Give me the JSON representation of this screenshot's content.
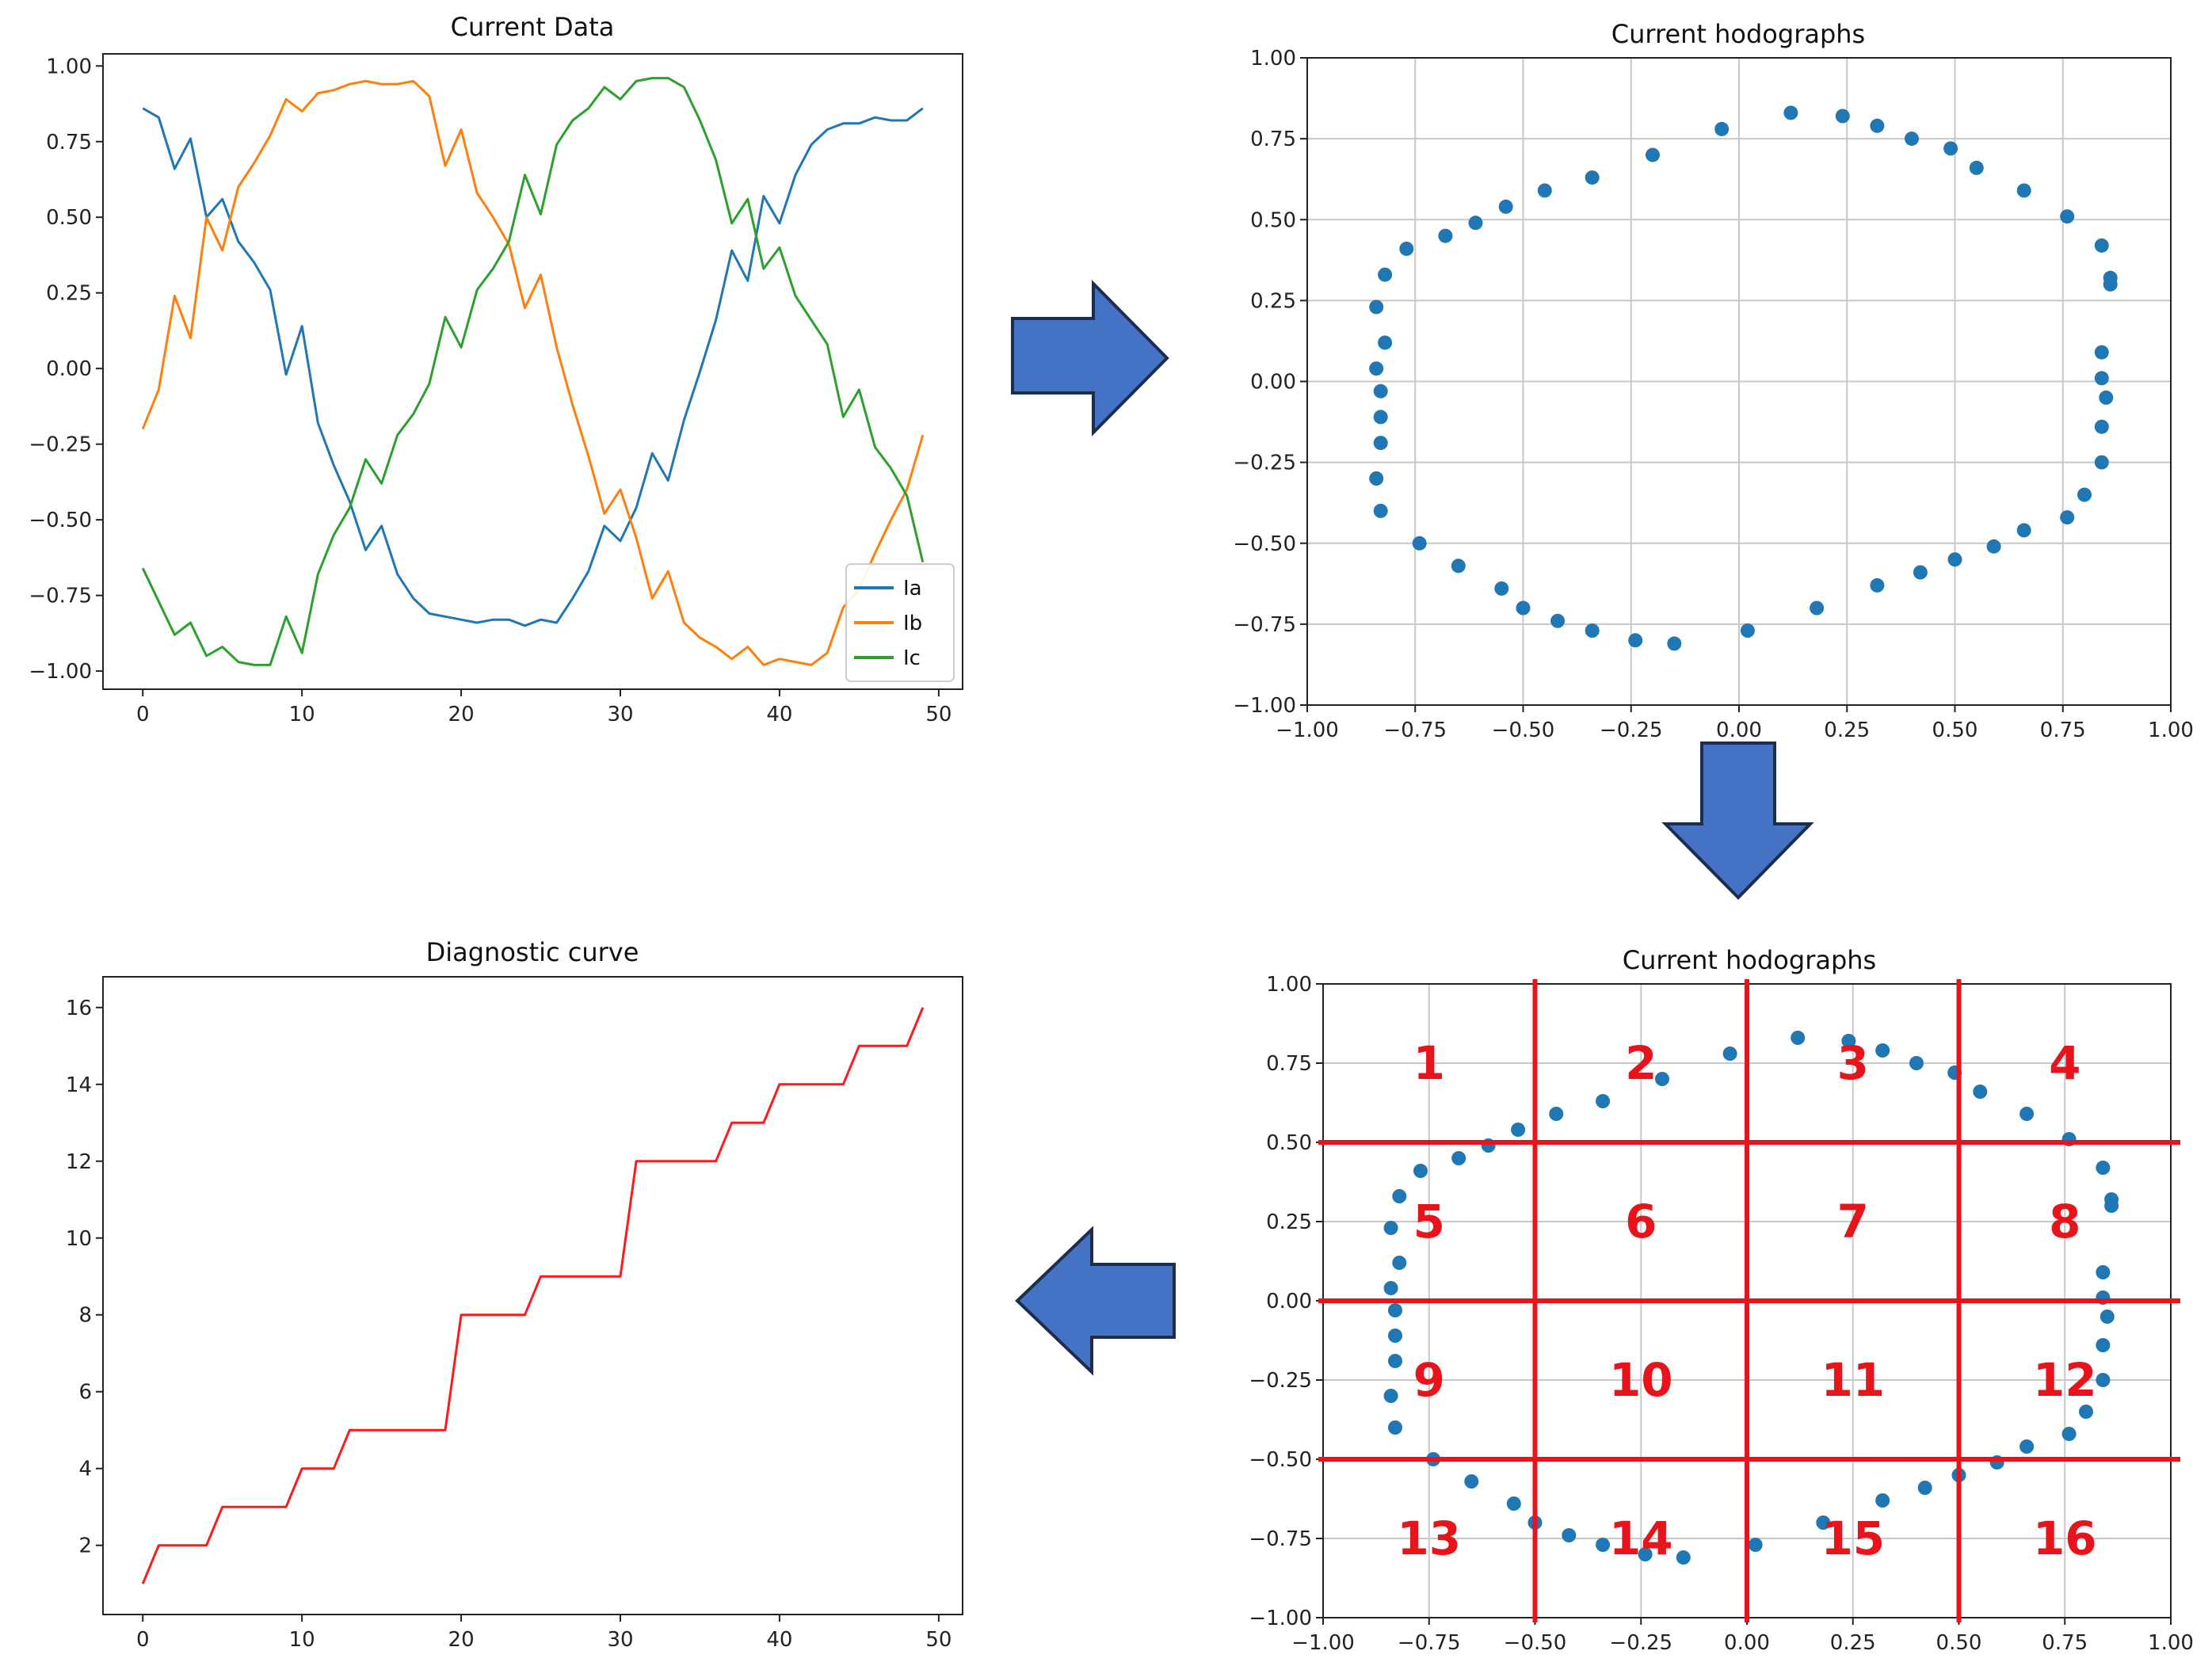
{
  "colors": {
    "ia": "#1f77b4",
    "ib": "#ff7f0e",
    "ic": "#2ca02c",
    "points": "#1f77b4",
    "diagnostic": "#ff1a1a",
    "grid_lines": "#e8141c",
    "arrow_fill": "#4472c4",
    "arrow_stroke": "#1f2d4d"
  },
  "chart_data": [
    {
      "id": "current-data",
      "type": "line",
      "title": "Current Data",
      "xlabel": "",
      "ylabel": "",
      "xlim": [
        -2.5,
        51.5
      ],
      "ylim": [
        -1.06,
        1.04
      ],
      "xticks": [
        0,
        10,
        20,
        30,
        40,
        50
      ],
      "xtick_labels": [
        "0",
        "10",
        "20",
        "30",
        "40",
        "50"
      ],
      "yticks": [
        1.0,
        0.75,
        0.5,
        0.25,
        0.0,
        -0.25,
        -0.5,
        -0.75,
        -1.0
      ],
      "ytick_labels": [
        "1.00",
        "0.75",
        "0.50",
        "0.25",
        "0.00",
        "−0.25",
        "−0.50",
        "−0.75",
        "−1.00"
      ],
      "grid": false,
      "legend_position": "lower-right",
      "x": [
        0,
        1,
        2,
        3,
        4,
        5,
        6,
        7,
        8,
        9,
        10,
        11,
        12,
        13,
        14,
        15,
        16,
        17,
        18,
        19,
        20,
        21,
        22,
        23,
        24,
        25,
        26,
        27,
        28,
        29,
        30,
        31,
        32,
        33,
        34,
        35,
        36,
        37,
        38,
        39,
        40,
        41,
        42,
        43,
        44,
        45,
        46,
        47,
        48,
        49
      ],
      "series": [
        {
          "name": "Ia",
          "color_key": "ia",
          "values": [
            0.86,
            0.83,
            0.66,
            0.76,
            0.5,
            0.56,
            0.42,
            0.35,
            0.26,
            -0.02,
            0.14,
            -0.18,
            -0.32,
            -0.44,
            -0.6,
            -0.52,
            -0.68,
            -0.76,
            -0.81,
            -0.82,
            -0.83,
            -0.84,
            -0.83,
            -0.83,
            -0.85,
            -0.83,
            -0.84,
            -0.76,
            -0.67,
            -0.52,
            -0.57,
            -0.46,
            -0.28,
            -0.37,
            -0.17,
            -0.01,
            0.16,
            0.39,
            0.29,
            0.57,
            0.48,
            0.64,
            0.74,
            0.79,
            0.81,
            0.81,
            0.83,
            0.82,
            0.82,
            0.86
          ]
        },
        {
          "name": "Ib",
          "color_key": "ib",
          "values": [
            -0.2,
            -0.07,
            0.24,
            0.1,
            0.5,
            0.39,
            0.6,
            0.68,
            0.77,
            0.89,
            0.85,
            0.91,
            0.92,
            0.94,
            0.95,
            0.94,
            0.94,
            0.95,
            0.9,
            0.67,
            0.79,
            0.58,
            0.5,
            0.41,
            0.2,
            0.31,
            0.07,
            -0.12,
            -0.29,
            -0.48,
            -0.4,
            -0.56,
            -0.76,
            -0.67,
            -0.84,
            -0.89,
            -0.92,
            -0.96,
            -0.92,
            -0.98,
            -0.96,
            -0.97,
            -0.98,
            -0.94,
            -0.79,
            -0.73,
            -0.61,
            -0.5,
            -0.4,
            -0.22
          ]
        },
        {
          "name": "Ic",
          "color_key": "ic",
          "values": [
            -0.66,
            -0.77,
            -0.88,
            -0.84,
            -0.95,
            -0.92,
            -0.97,
            -0.98,
            -0.98,
            -0.82,
            -0.94,
            -0.68,
            -0.55,
            -0.46,
            -0.3,
            -0.38,
            -0.22,
            -0.15,
            -0.05,
            0.17,
            0.07,
            0.26,
            0.33,
            0.42,
            0.64,
            0.51,
            0.74,
            0.82,
            0.86,
            0.93,
            0.89,
            0.95,
            0.96,
            0.96,
            0.93,
            0.82,
            0.69,
            0.48,
            0.56,
            0.33,
            0.4,
            0.24,
            0.16,
            0.08,
            -0.16,
            -0.07,
            -0.26,
            -0.33,
            -0.42,
            -0.64
          ]
        }
      ]
    },
    {
      "id": "current-hodographs",
      "type": "scatter",
      "title": "Current hodographs",
      "xlabel": "",
      "ylabel": "",
      "xlim": [
        -1.0,
        1.0
      ],
      "ylim": [
        -1.0,
        1.0
      ],
      "xticks": [
        -1.0,
        -0.75,
        -0.5,
        -0.25,
        0.0,
        0.25,
        0.5,
        0.75,
        1.0
      ],
      "xtick_labels": [
        "−1.00",
        "−0.75",
        "−0.50",
        "−0.25",
        "0.00",
        "0.25",
        "0.50",
        "0.75",
        "1.00"
      ],
      "yticks": [
        1.0,
        0.75,
        0.5,
        0.25,
        0.0,
        -0.25,
        -0.5,
        -0.75,
        -1.0
      ],
      "ytick_labels": [
        "1.00",
        "0.75",
        "0.50",
        "0.25",
        "0.00",
        "−0.25",
        "−0.50",
        "−0.75",
        "−1.00"
      ],
      "grid": true,
      "points": [
        [
          0.12,
          0.83
        ],
        [
          0.24,
          0.82
        ],
        [
          0.32,
          0.79
        ],
        [
          0.4,
          0.75
        ],
        [
          0.49,
          0.72
        ],
        [
          0.55,
          0.66
        ],
        [
          0.66,
          0.59
        ],
        [
          0.76,
          0.51
        ],
        [
          0.84,
          0.42
        ],
        [
          0.86,
          0.32
        ],
        [
          0.86,
          0.3
        ],
        [
          0.84,
          0.09
        ],
        [
          0.84,
          0.01
        ],
        [
          0.85,
          -0.05
        ],
        [
          0.84,
          -0.14
        ],
        [
          0.84,
          -0.25
        ],
        [
          0.8,
          -0.35
        ],
        [
          0.76,
          -0.42
        ],
        [
          0.66,
          -0.46
        ],
        [
          0.59,
          -0.51
        ],
        [
          0.5,
          -0.55
        ],
        [
          0.42,
          -0.59
        ],
        [
          0.32,
          -0.63
        ],
        [
          0.18,
          -0.7
        ],
        [
          0.02,
          -0.77
        ],
        [
          -0.15,
          -0.81
        ],
        [
          -0.24,
          -0.8
        ],
        [
          -0.34,
          -0.77
        ],
        [
          -0.42,
          -0.74
        ],
        [
          -0.5,
          -0.7
        ],
        [
          -0.55,
          -0.64
        ],
        [
          -0.65,
          -0.57
        ],
        [
          -0.74,
          -0.5
        ],
        [
          -0.83,
          -0.4
        ],
        [
          -0.84,
          -0.3
        ],
        [
          -0.83,
          -0.19
        ],
        [
          -0.83,
          -0.11
        ],
        [
          -0.83,
          -0.03
        ],
        [
          -0.84,
          0.04
        ],
        [
          -0.82,
          0.12
        ],
        [
          -0.84,
          0.23
        ],
        [
          -0.82,
          0.33
        ],
        [
          -0.77,
          0.41
        ],
        [
          -0.68,
          0.45
        ],
        [
          -0.61,
          0.49
        ],
        [
          -0.54,
          0.54
        ],
        [
          -0.45,
          0.59
        ],
        [
          -0.34,
          0.63
        ],
        [
          -0.2,
          0.7
        ],
        [
          -0.04,
          0.78
        ]
      ]
    },
    {
      "id": "current-hodographs-regions",
      "type": "scatter",
      "title": "Current hodographs",
      "xlabel": "",
      "ylabel": "",
      "xlim": [
        -1.0,
        1.0
      ],
      "ylim": [
        -1.0,
        1.0
      ],
      "xticks": [
        -1.0,
        -0.75,
        -0.5,
        -0.25,
        0.0,
        0.25,
        0.5,
        0.75,
        1.0
      ],
      "xtick_labels": [
        "−1.00",
        "−0.75",
        "−0.50",
        "−0.25",
        "0.00",
        "0.25",
        "0.50",
        "0.75",
        "1.00"
      ],
      "yticks": [
        1.0,
        0.75,
        0.5,
        0.25,
        0.0,
        -0.25,
        -0.5,
        -0.75,
        -1.0
      ],
      "ytick_labels": [
        "1.00",
        "0.75",
        "0.50",
        "0.25",
        "0.00",
        "−0.25",
        "−0.50",
        "−0.75",
        "−1.00"
      ],
      "grid": true,
      "divider_lines": [
        -0.5,
        0.0,
        0.5
      ],
      "regions": [
        {
          "label": "1",
          "x": -0.75,
          "y": 0.75
        },
        {
          "label": "2",
          "x": -0.25,
          "y": 0.75
        },
        {
          "label": "3",
          "x": 0.25,
          "y": 0.75
        },
        {
          "label": "4",
          "x": 0.75,
          "y": 0.75
        },
        {
          "label": "5",
          "x": -0.75,
          "y": 0.25
        },
        {
          "label": "6",
          "x": -0.25,
          "y": 0.25
        },
        {
          "label": "7",
          "x": 0.25,
          "y": 0.25
        },
        {
          "label": "8",
          "x": 0.75,
          "y": 0.25
        },
        {
          "label": "9",
          "x": -0.75,
          "y": -0.25
        },
        {
          "label": "10",
          "x": -0.25,
          "y": -0.25
        },
        {
          "label": "11",
          "x": 0.25,
          "y": -0.25
        },
        {
          "label": "12",
          "x": 0.75,
          "y": -0.25
        },
        {
          "label": "13",
          "x": -0.75,
          "y": -0.75
        },
        {
          "label": "14",
          "x": -0.25,
          "y": -0.75
        },
        {
          "label": "15",
          "x": 0.25,
          "y": -0.75
        },
        {
          "label": "16",
          "x": 0.75,
          "y": -0.75
        }
      ],
      "points_ref": "current-hodographs"
    },
    {
      "id": "diagnostic-curve",
      "type": "line",
      "title": "Diagnostic curve",
      "xlabel": "",
      "ylabel": "",
      "xlim": [
        -2.5,
        51.5
      ],
      "ylim": [
        0.2,
        16.8
      ],
      "xticks": [
        0,
        10,
        20,
        30,
        40,
        50
      ],
      "xtick_labels": [
        "0",
        "10",
        "20",
        "30",
        "40",
        "50"
      ],
      "yticks": [
        2,
        4,
        6,
        8,
        10,
        12,
        14,
        16
      ],
      "ytick_labels": [
        "2",
        "4",
        "6",
        "8",
        "10",
        "12",
        "14",
        "16"
      ],
      "grid": false,
      "x": [
        0,
        1,
        2,
        3,
        4,
        5,
        6,
        7,
        8,
        9,
        10,
        11,
        12,
        13,
        14,
        15,
        16,
        17,
        18,
        19,
        20,
        21,
        22,
        23,
        24,
        25,
        26,
        27,
        28,
        29,
        30,
        31,
        32,
        33,
        34,
        35,
        36,
        37,
        38,
        39,
        40,
        41,
        42,
        43,
        44,
        45,
        46,
        47,
        48,
        49
      ],
      "series": [
        {
          "name": "diagnostic",
          "color_key": "diagnostic",
          "values": [
            1,
            2,
            2,
            2,
            2,
            3,
            3,
            3,
            3,
            3,
            4,
            4,
            4,
            5,
            5,
            5,
            5,
            5,
            5,
            5,
            8,
            8,
            8,
            8,
            8,
            9,
            9,
            9,
            9,
            9,
            9,
            12,
            12,
            12,
            12,
            12,
            12,
            13,
            13,
            13,
            14,
            14,
            14,
            14,
            14,
            15,
            15,
            15,
            15,
            16
          ]
        }
      ]
    }
  ]
}
